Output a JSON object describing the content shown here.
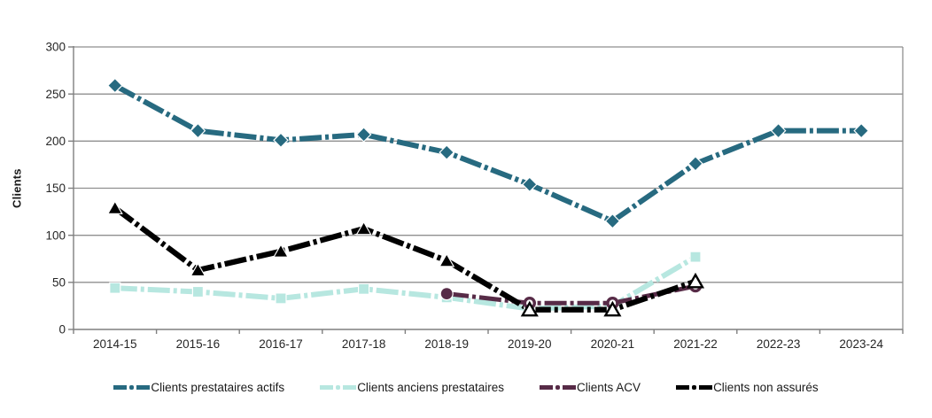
{
  "chart_data": {
    "type": "line",
    "title": "",
    "xlabel": "",
    "ylabel": "Clients",
    "ylim": [
      0,
      300
    ],
    "ytick_step": 50,
    "yticks": [
      0,
      50,
      100,
      150,
      200,
      250,
      300
    ],
    "grid": "horizontal",
    "legend_position": "bottom",
    "categories": [
      "2014-15",
      "2015-16",
      "2016-17",
      "2017-18",
      "2018-19",
      "2019-20",
      "2020-21",
      "2021-22",
      "2022-23",
      "2023-24"
    ],
    "series": [
      {
        "name": "Clients prestataires actifs",
        "color": "#276A80",
        "marker": "diamond",
        "line_style": "dash-dot",
        "values": [
          259,
          211,
          201,
          207,
          188,
          154,
          115,
          176,
          211,
          211
        ],
        "open_points": []
      },
      {
        "name": "Clients anciens prestataires",
        "color": "#B7E7E0",
        "marker": "square",
        "line_style": "dash-dot",
        "values": [
          44,
          40,
          33,
          43,
          34,
          22,
          25,
          77,
          null,
          null
        ],
        "open_points": []
      },
      {
        "name": "Clients ACV",
        "color": "#572B47",
        "marker": "circle",
        "line_style": "dash-dot",
        "values": [
          null,
          null,
          null,
          null,
          38,
          28,
          28,
          46,
          null,
          null
        ],
        "open_points": [
          5,
          6,
          7
        ]
      },
      {
        "name": "Clients non assurés",
        "color": "#000000",
        "marker": "triangle",
        "line_style": "dash-dot",
        "values": [
          129,
          63,
          83,
          107,
          73,
          21,
          21,
          51,
          null,
          null
        ],
        "open_points": [
          5,
          6,
          7
        ]
      }
    ]
  }
}
